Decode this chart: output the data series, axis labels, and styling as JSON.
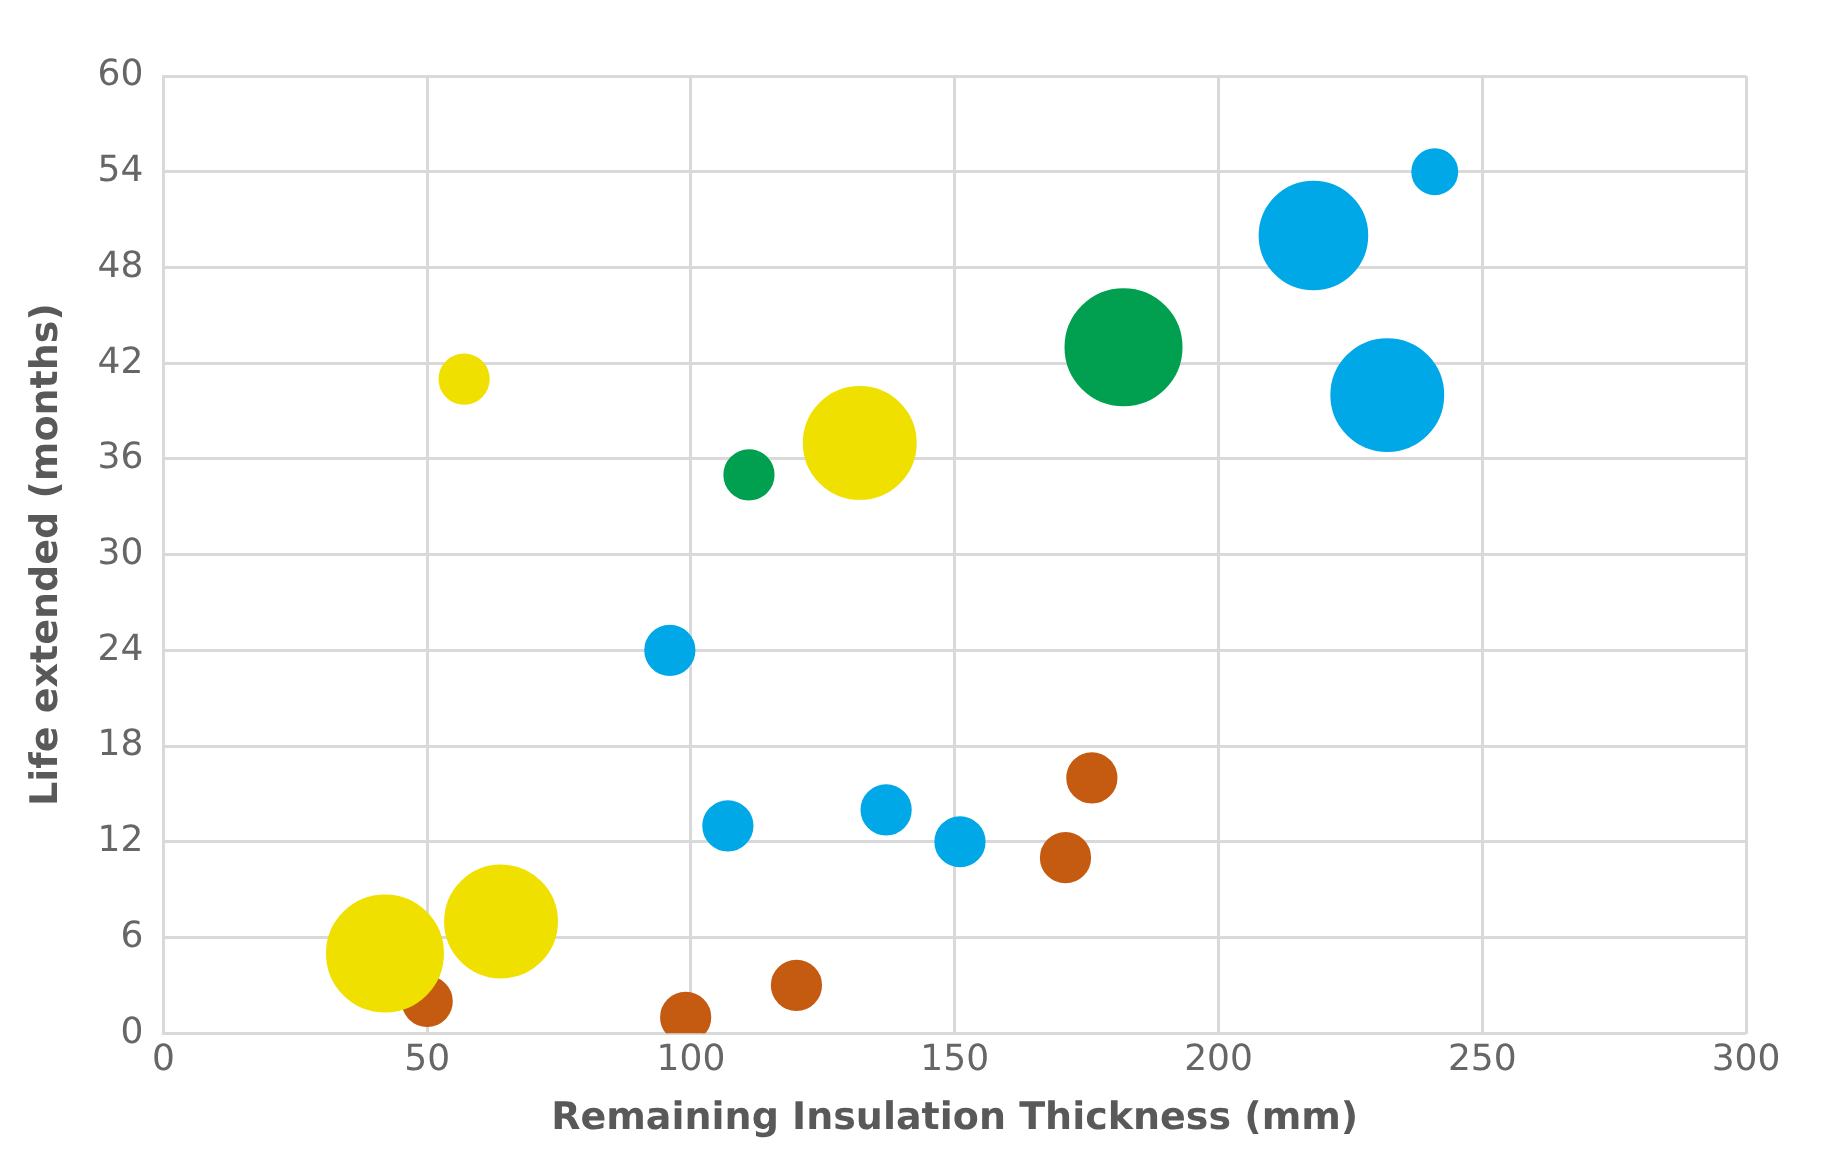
{
  "chart_data": {
    "type": "bubble",
    "xlabel": "Remaining Insulation Thickness (mm)",
    "ylabel": "Life extended (months)",
    "xlim": [
      0,
      300
    ],
    "xticks": [
      0,
      50,
      100,
      150,
      200,
      250,
      300
    ],
    "ylim": [
      0,
      60
    ],
    "yticks": [
      0,
      6,
      12,
      18,
      24,
      30,
      36,
      42,
      48,
      54,
      60
    ],
    "grid": true,
    "legend": false,
    "series": [
      {
        "color": "#f0e000",
        "x": [
          42,
          64,
          57,
          132
        ],
        "values": [
          5,
          7,
          41,
          37
        ],
        "sizes": [
          1,
          0.93,
          0.18,
          0.93
        ]
      },
      {
        "color": "#c55a11",
        "x": [
          50,
          99,
          120,
          171,
          176
        ],
        "values": [
          2,
          1,
          3,
          11,
          16
        ],
        "sizes": [
          0.18,
          0.18,
          0.18,
          0.18,
          0.18
        ]
      },
      {
        "color": "#00a8e8",
        "x": [
          96,
          107,
          137,
          151,
          241,
          218,
          232
        ],
        "values": [
          24,
          13,
          14,
          12,
          54,
          50,
          40
        ],
        "sizes": [
          0.18,
          0.18,
          0.18,
          0.18,
          0.15,
          0.86,
          0.93
        ]
      },
      {
        "color": "#00a050",
        "x": [
          111,
          182
        ],
        "values": [
          35,
          43
        ],
        "sizes": [
          0.18,
          1
        ]
      }
    ]
  }
}
